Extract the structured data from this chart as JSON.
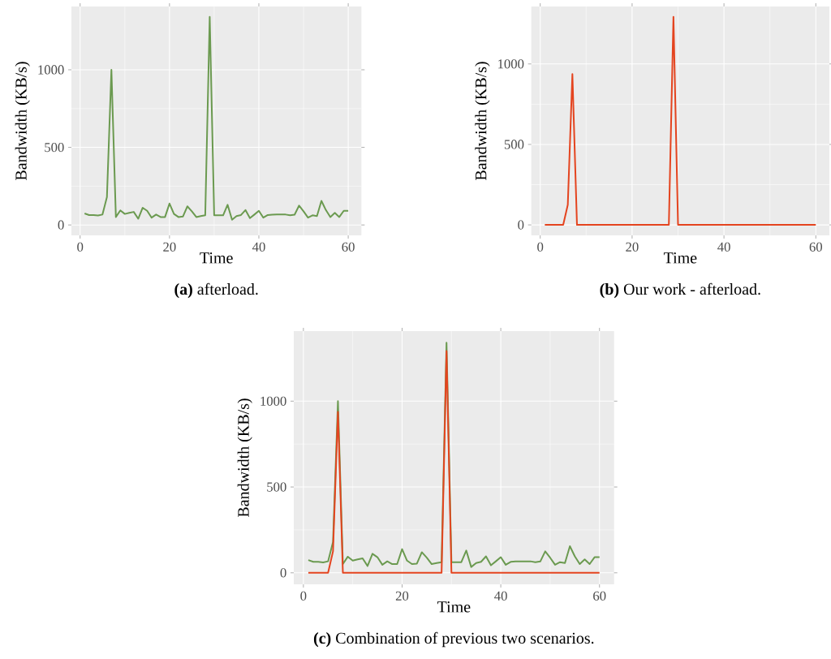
{
  "chart_data": [
    {
      "type": "line",
      "title": "**(a)** afterload.",
      "xlabel": "Time",
      "ylabel": "Bandwidth (KB/s)",
      "x": [
        1,
        2,
        3,
        4,
        5,
        6,
        7,
        8,
        9,
        10,
        11,
        12,
        13,
        14,
        15,
        16,
        17,
        18,
        19,
        20,
        21,
        22,
        23,
        24,
        25,
        26,
        27,
        28,
        29,
        30,
        31,
        32,
        33,
        34,
        35,
        36,
        37,
        38,
        39,
        40,
        41,
        42,
        43,
        44,
        45,
        46,
        47,
        48,
        49,
        50,
        51,
        52,
        53,
        54,
        55,
        56,
        57,
        58,
        59,
        60
      ],
      "series": [
        {
          "color": "#6b9a50",
          "values": [
            74,
            64,
            64,
            61,
            67,
            180,
            1000,
            51,
            94,
            71,
            78,
            84,
            40,
            111,
            91,
            47,
            67,
            51,
            51,
            138,
            71,
            51,
            54,
            120,
            88,
            51,
            57,
            62,
            1341,
            62,
            62,
            62,
            130,
            34,
            57,
            64,
            96,
            44,
            67,
            91,
            47,
            64,
            66,
            67,
            67,
            67,
            62,
            66,
            125,
            88,
            47,
            62,
            57,
            155,
            96,
            51,
            78,
            51,
            91,
            91
          ]
        }
      ],
      "xlim": [
        -1.95,
        62.95
      ],
      "ylim": [
        -67,
        1408
      ],
      "xticks": [
        0,
        20,
        40,
        60
      ],
      "yticks": [
        0,
        500,
        1000
      ],
      "grid": true
    },
    {
      "type": "line",
      "title": "**(b)** Our work - afterload.",
      "xlabel": "Time",
      "ylabel": "Bandwidth (KB/s)",
      "x": [
        1,
        2,
        3,
        4,
        5,
        6,
        7,
        8,
        9,
        10,
        11,
        12,
        13,
        14,
        15,
        16,
        17,
        18,
        19,
        20,
        21,
        22,
        23,
        24,
        25,
        26,
        27,
        28,
        29,
        30,
        31,
        32,
        33,
        34,
        35,
        36,
        37,
        38,
        39,
        40,
        41,
        42,
        43,
        44,
        45,
        46,
        47,
        48,
        49,
        50,
        51,
        52,
        53,
        54,
        55,
        56,
        57,
        58,
        59,
        60
      ],
      "series": [
        {
          "color": "#e4441f",
          "values": [
            0,
            0,
            0,
            0,
            0,
            125,
            937,
            0,
            0,
            0,
            0,
            0,
            0,
            0,
            0,
            0,
            0,
            0,
            0,
            0,
            0,
            0,
            0,
            0,
            0,
            0,
            0,
            0,
            1292,
            0,
            0,
            0,
            0,
            0,
            0,
            0,
            0,
            0,
            0,
            0,
            0,
            0,
            0,
            0,
            0,
            0,
            0,
            0,
            0,
            0,
            0,
            0,
            0,
            0,
            0,
            0,
            0,
            0,
            0,
            0
          ]
        }
      ],
      "xlim": [
        -1.95,
        62.95
      ],
      "ylim": [
        -65,
        1357
      ],
      "xticks": [
        0,
        20,
        40,
        60
      ],
      "yticks": [
        0,
        500,
        1000
      ],
      "grid": true
    },
    {
      "type": "line",
      "title": "**(c)** Combination of previous two scenarios.",
      "xlabel": "Time",
      "ylabel": "Bandwidth (KB/s)",
      "x": [
        1,
        2,
        3,
        4,
        5,
        6,
        7,
        8,
        9,
        10,
        11,
        12,
        13,
        14,
        15,
        16,
        17,
        18,
        19,
        20,
        21,
        22,
        23,
        24,
        25,
        26,
        27,
        28,
        29,
        30,
        31,
        32,
        33,
        34,
        35,
        36,
        37,
        38,
        39,
        40,
        41,
        42,
        43,
        44,
        45,
        46,
        47,
        48,
        49,
        50,
        51,
        52,
        53,
        54,
        55,
        56,
        57,
        58,
        59,
        60
      ],
      "series": [
        {
          "color": "#6b9a50",
          "values": [
            74,
            64,
            64,
            61,
            67,
            180,
            1000,
            51,
            94,
            71,
            78,
            84,
            40,
            111,
            91,
            47,
            67,
            51,
            51,
            138,
            71,
            51,
            54,
            120,
            88,
            51,
            57,
            62,
            1341,
            62,
            62,
            62,
            130,
            34,
            57,
            64,
            96,
            44,
            67,
            91,
            47,
            64,
            66,
            67,
            67,
            67,
            62,
            66,
            125,
            88,
            47,
            62,
            57,
            155,
            96,
            51,
            78,
            51,
            91,
            91
          ]
        },
        {
          "color": "#e4441f",
          "values": [
            0,
            0,
            0,
            0,
            0,
            125,
            937,
            0,
            0,
            0,
            0,
            0,
            0,
            0,
            0,
            0,
            0,
            0,
            0,
            0,
            0,
            0,
            0,
            0,
            0,
            0,
            0,
            0,
            1292,
            0,
            0,
            0,
            0,
            0,
            0,
            0,
            0,
            0,
            0,
            0,
            0,
            0,
            0,
            0,
            0,
            0,
            0,
            0,
            0,
            0,
            0,
            0,
            0,
            0,
            0,
            0,
            0,
            0,
            0,
            0
          ]
        }
      ],
      "xlim": [
        -1.95,
        62.95
      ],
      "ylim": [
        -67,
        1408
      ],
      "xticks": [
        0,
        20,
        40,
        60
      ],
      "yticks": [
        0,
        500,
        1000
      ],
      "grid": true
    }
  ]
}
